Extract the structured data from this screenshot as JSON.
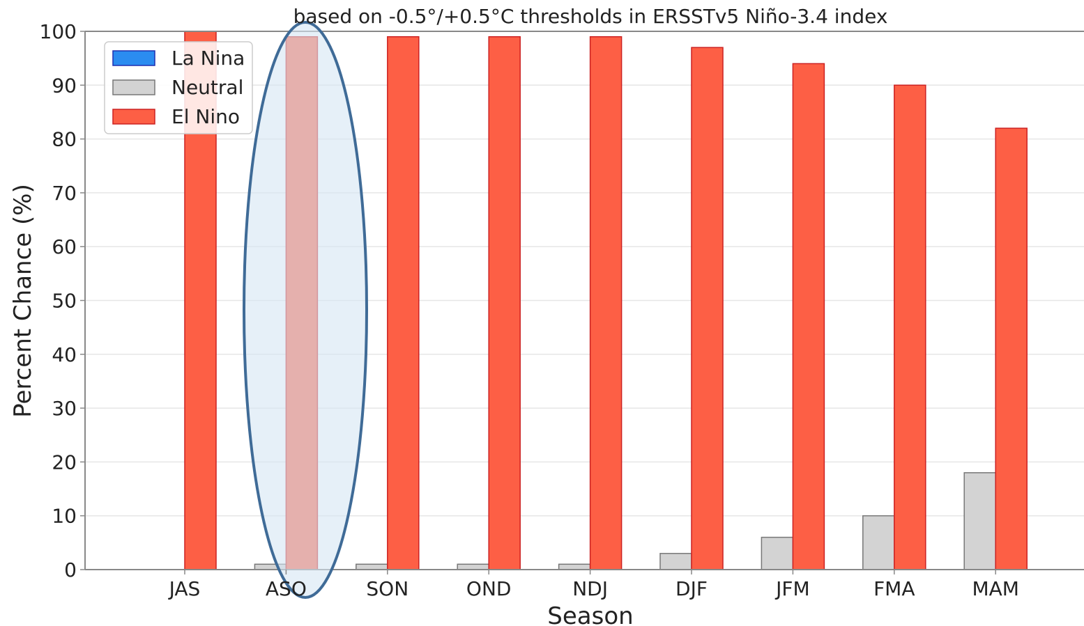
{
  "colors": {
    "la_nina": "#2b8cf0",
    "la_nina_edge": "#1f2fb0",
    "neutral": "#d3d3d3",
    "neutral_edge": "#777777",
    "el_nino": "#fd5f45",
    "el_nino_edge": "#cc2222",
    "highlight_fill": "#d6e6f4",
    "highlight_stroke": "#3f6b97",
    "grid": "#e6e6e6",
    "axis": "#888888"
  },
  "chart_data": {
    "type": "bar",
    "title": "based on -0.5°/+0.5°C thresholds in ERSSTv5 Niño-3.4 index",
    "xlabel": "Season",
    "ylabel": "Percent Chance (%)",
    "ylim": [
      0,
      100
    ],
    "yticks": [
      "0",
      "10",
      "20",
      "30",
      "40",
      "50",
      "60",
      "70",
      "80",
      "90",
      "100"
    ],
    "grid": "horizontal",
    "legend_position": "top-left",
    "categories": [
      "JAS",
      "ASO",
      "SON",
      "OND",
      "NDJ",
      "DJF",
      "JFM",
      "FMA",
      "MAM"
    ],
    "series": [
      {
        "name": "La Nina",
        "values": [
          0,
          0,
          0,
          0,
          0,
          0,
          0,
          0,
          0
        ]
      },
      {
        "name": "Neutral",
        "values": [
          0,
          1,
          1,
          1,
          1,
          3,
          6,
          10,
          18
        ]
      },
      {
        "name": "El Nino",
        "values": [
          100,
          99,
          99,
          99,
          99,
          97,
          94,
          90,
          82
        ]
      }
    ],
    "highlight": {
      "category": "ASO",
      "shape": "ellipse"
    }
  }
}
